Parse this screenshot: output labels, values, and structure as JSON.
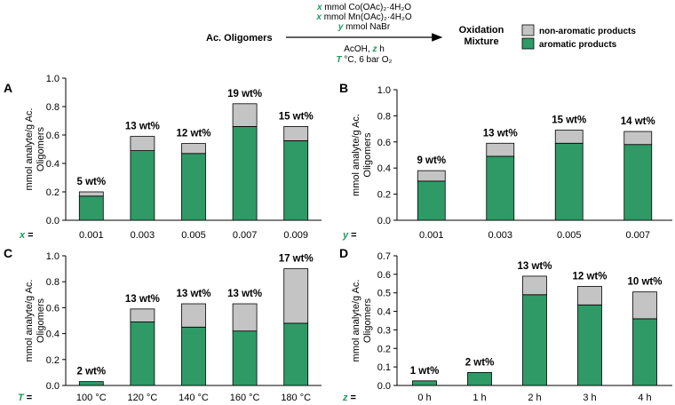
{
  "colors": {
    "aromatic": "#2f9a66",
    "non_aromatic": "#c4c4c4",
    "var_label": "#1a9a5a",
    "stroke": "#000000"
  },
  "scheme": {
    "reactant": "Ac. Oligomers",
    "product_line1": "Oxidation",
    "product_line2": "Mixture",
    "reagent_co_var": "x",
    "reagent_co": " mmol Co(OAc)₂·4H₂O",
    "reagent_mn_var": "x",
    "reagent_mn": " mmol Mn(OAc)₂·4H₂O",
    "reagent_br_var": "y",
    "reagent_br": " mmol NaBr",
    "condition_solvent": "AcOH, ",
    "condition_time_var": "z",
    "condition_time_unit": " h",
    "condition_temp_var": "T",
    "condition_temp": " °C, 6 bar O₂"
  },
  "legend": {
    "non_aromatic": "non-aromatic products",
    "aromatic": "aromatic products"
  },
  "chart_data": [
    {
      "panel": "A",
      "type": "bar",
      "stacked": true,
      "ylabel": "mmol analyte/g Ac. Oligomers",
      "ylabel_lines": [
        "mmol analyte/g Ac.",
        "Oligomers"
      ],
      "ylim": [
        0,
        1.0
      ],
      "yticks": [
        "0.0",
        "0.2",
        "0.4",
        "0.6",
        "0.8",
        "1.0"
      ],
      "x_var": "x",
      "x_eq": " =",
      "categories": [
        "0.001",
        "0.003",
        "0.005",
        "0.007",
        "0.009"
      ],
      "series": [
        {
          "name": "aromatic products",
          "values": [
            0.17,
            0.49,
            0.47,
            0.66,
            0.56
          ]
        },
        {
          "name": "non-aromatic products",
          "values": [
            0.03,
            0.1,
            0.07,
            0.16,
            0.1
          ]
        }
      ],
      "labels": [
        "5 wt%",
        "13 wt%",
        "12 wt%",
        "19 wt%",
        "15 wt%"
      ]
    },
    {
      "panel": "B",
      "type": "bar",
      "stacked": true,
      "ylabel": "mmol analyte/g Ac. Oligomers",
      "ylabel_lines": [
        "mmol analyte/g Ac.",
        "Oligomers"
      ],
      "ylim": [
        0,
        1.0
      ],
      "yticks": [
        "0.0",
        "0.2",
        "0.4",
        "0.6",
        "0.8",
        "1.0"
      ],
      "x_var": "y",
      "x_eq": " =",
      "categories": [
        "0.001",
        "0.003",
        "0.005",
        "0.007"
      ],
      "series": [
        {
          "name": "aromatic products",
          "values": [
            0.3,
            0.49,
            0.59,
            0.58
          ]
        },
        {
          "name": "non-aromatic products",
          "values": [
            0.08,
            0.1,
            0.1,
            0.1
          ]
        }
      ],
      "labels": [
        "9 wt%",
        "13 wt%",
        "15 wt%",
        "14 wt%"
      ]
    },
    {
      "panel": "C",
      "type": "bar",
      "stacked": true,
      "ylabel": "mmol analyte/g Ac. Oligomers",
      "ylabel_lines": [
        "mmol analyte/g Ac.",
        "Oligomers"
      ],
      "ylim": [
        0,
        1.0
      ],
      "yticks": [
        "0.0",
        "0.2",
        "0.4",
        "0.6",
        "0.8",
        "1.0"
      ],
      "x_var": "T",
      "x_eq": " =",
      "categories": [
        "100 °C",
        "120 °C",
        "140 °C",
        "160 °C",
        "180 °C"
      ],
      "series": [
        {
          "name": "aromatic products",
          "values": [
            0.03,
            0.49,
            0.45,
            0.42,
            0.48
          ]
        },
        {
          "name": "non-aromatic products",
          "values": [
            0.0,
            0.1,
            0.18,
            0.21,
            0.42
          ]
        }
      ],
      "labels": [
        "2 wt%",
        "13 wt%",
        "13 wt%",
        "13 wt%",
        "17 wt%"
      ]
    },
    {
      "panel": "D",
      "type": "bar",
      "stacked": true,
      "ylabel": "mmol analyte/g Ac. Oligomers",
      "ylabel_lines": [
        "mmol analyte/g Ac.",
        "Oligomers"
      ],
      "ylim": [
        0,
        0.7
      ],
      "yticks": [
        "0.0",
        "0.1",
        "0.2",
        "0.3",
        "0.4",
        "0.5",
        "0.6",
        "0.7"
      ],
      "x_var": "z",
      "x_eq": " =",
      "categories": [
        "0 h",
        "1 h",
        "2 h",
        "3 h",
        "4 h"
      ],
      "series": [
        {
          "name": "aromatic products",
          "values": [
            0.025,
            0.07,
            0.49,
            0.435,
            0.36
          ]
        },
        {
          "name": "non-aromatic products",
          "values": [
            0.0,
            0.0,
            0.1,
            0.1,
            0.145
          ]
        }
      ],
      "labels": [
        "1 wt%",
        "2 wt%",
        "13 wt%",
        "12 wt%",
        "10 wt%"
      ]
    }
  ]
}
